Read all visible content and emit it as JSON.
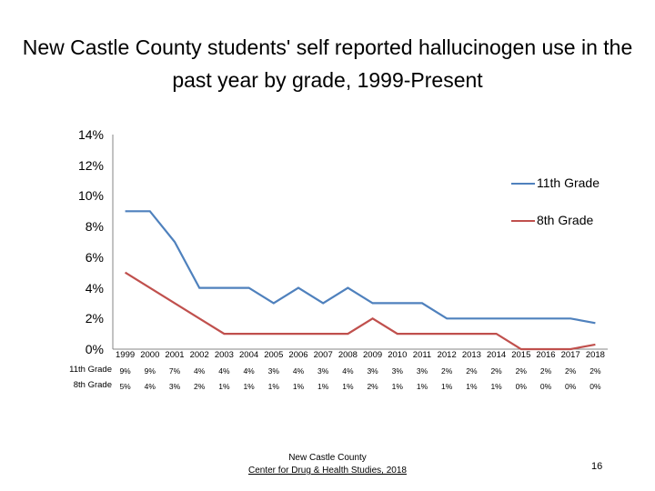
{
  "slide": {
    "title": "New Castle County students' self reported hallucinogen use in the past year by grade, 1999-Present",
    "footer_org": "New Castle County",
    "footer_link": "Center for Drug & Health Studies, 2018",
    "page_number": "16"
  },
  "colors": {
    "grade11": "#4F81BD",
    "grade8": "#C0504D",
    "axis": "#868686"
  },
  "chart_data": {
    "type": "line",
    "title": "New Castle County students' self reported hallucinogen use in the past year by grade, 1999-Present",
    "categories": [
      "1999",
      "2000",
      "2001",
      "2002",
      "2003",
      "2004",
      "2005",
      "2006",
      "2007",
      "2008",
      "2009",
      "2010",
      "2011",
      "2012",
      "2013",
      "2014",
      "2015",
      "2016",
      "2017",
      "2018"
    ],
    "ylim": [
      0,
      14
    ],
    "yticks": [
      "0%",
      "2%",
      "4%",
      "6%",
      "8%",
      "10%",
      "12%",
      "14%"
    ],
    "legend_position": "right",
    "series": [
      {
        "name": "11th Grade",
        "values": [
          9,
          9,
          7,
          4,
          4,
          4,
          3,
          4,
          3,
          4,
          3,
          3,
          3,
          2,
          2,
          2,
          2,
          2,
          2,
          1.7
        ],
        "table_labels": [
          "9%",
          "9%",
          "7%",
          "4%",
          "4%",
          "4%",
          "3%",
          "4%",
          "3%",
          "4%",
          "3%",
          "3%",
          "3%",
          "2%",
          "2%",
          "2%",
          "2%",
          "2%",
          "2%",
          "2%"
        ]
      },
      {
        "name": "8th Grade",
        "values": [
          5,
          4,
          3,
          2,
          1,
          1,
          1,
          1,
          1,
          1,
          2,
          1,
          1,
          1,
          1,
          1,
          0,
          0,
          0,
          0.3
        ],
        "table_labels": [
          "5%",
          "4%",
          "3%",
          "2%",
          "1%",
          "1%",
          "1%",
          "1%",
          "1%",
          "1%",
          "2%",
          "1%",
          "1%",
          "1%",
          "1%",
          "1%",
          "0%",
          "0%",
          "0%",
          "0%"
        ]
      }
    ]
  }
}
